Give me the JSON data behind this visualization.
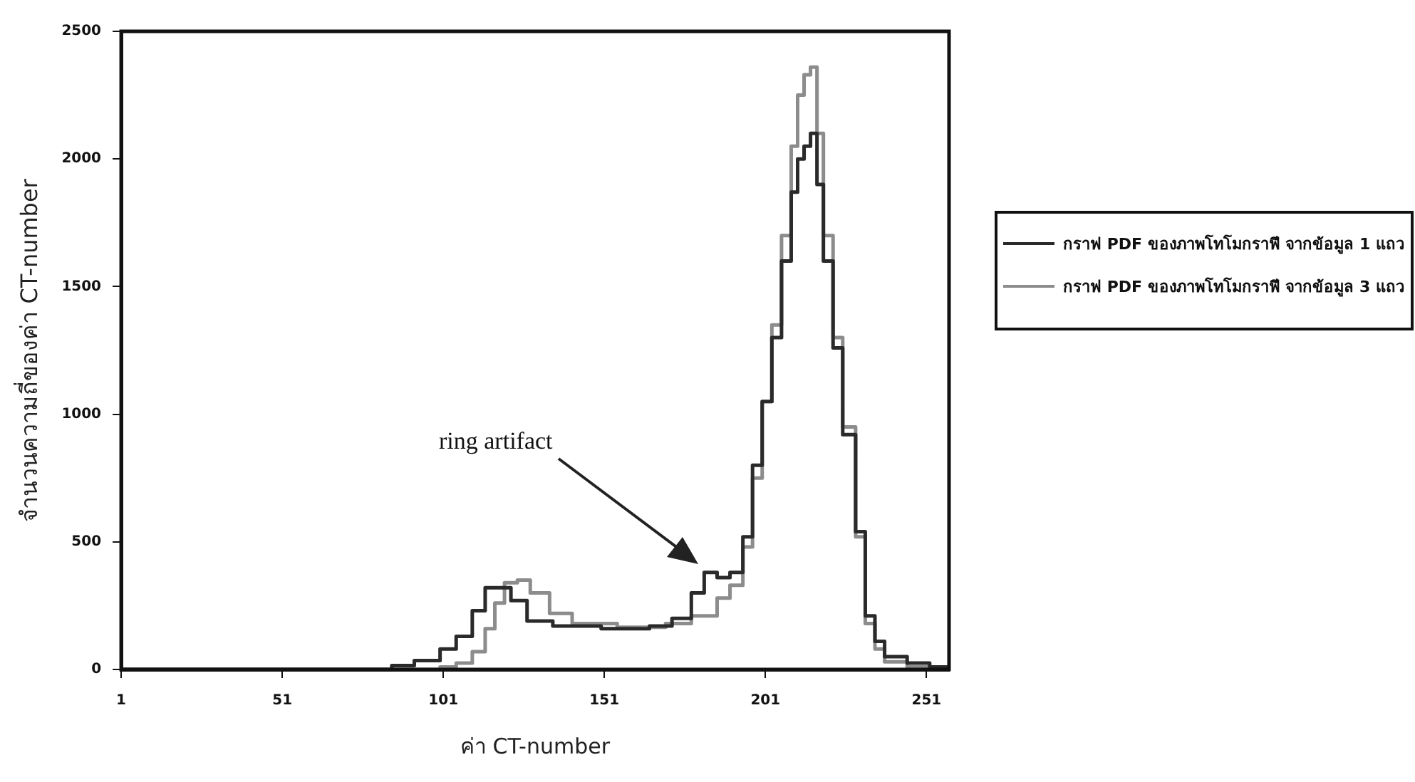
{
  "chart_data": {
    "type": "step",
    "xlabel": "ค่า CT-number",
    "ylabel": "จำนวนความถี่ของค่า CT-number",
    "xlim": [
      1,
      258
    ],
    "ylim": [
      0,
      2500
    ],
    "xticks": [
      1,
      51,
      101,
      151,
      201,
      251
    ],
    "yticks": [
      0,
      500,
      1000,
      1500,
      2000,
      2500
    ],
    "grid": false,
    "legend": "right",
    "marker": "none",
    "line_style": "solid",
    "annotations": [
      "ring artifact"
    ],
    "series": [
      {
        "name": "กราฟ PDF ของภาพโทโมกราฟี จากข้อมูล 1 แถว",
        "color": "#2a2a2a",
        "x": [
          1,
          78,
          85,
          92,
          100,
          105,
          110,
          114,
          118,
          122,
          127,
          135,
          150,
          165,
          172,
          178,
          182,
          186,
          190,
          194,
          197,
          200,
          203,
          206,
          209,
          211,
          213,
          215,
          217,
          219,
          222,
          225,
          229,
          232,
          235,
          238,
          245,
          252,
          258
        ],
        "values": [
          0,
          0,
          15,
          35,
          80,
          130,
          230,
          320,
          320,
          270,
          190,
          170,
          160,
          170,
          200,
          300,
          380,
          360,
          380,
          520,
          800,
          1050,
          1300,
          1600,
          1870,
          2000,
          2050,
          2100,
          1900,
          1600,
          1260,
          920,
          540,
          210,
          110,
          50,
          25,
          10,
          15
        ]
      },
      {
        "name": "กราฟ PDF ของภาพโทโมกราฟี จากข้อมูล 3 แถว",
        "color": "#8c8c8c",
        "x": [
          1,
          95,
          100,
          105,
          110,
          114,
          117,
          120,
          124,
          128,
          134,
          141,
          155,
          170,
          178,
          186,
          190,
          194,
          197,
          200,
          203,
          206,
          209,
          211,
          213,
          215,
          217,
          219,
          222,
          225,
          229,
          232,
          235,
          238,
          245,
          258
        ],
        "values": [
          0,
          0,
          10,
          25,
          70,
          160,
          260,
          340,
          350,
          300,
          220,
          180,
          165,
          180,
          210,
          280,
          330,
          480,
          750,
          1050,
          1350,
          1700,
          2050,
          2250,
          2330,
          2360,
          2100,
          1700,
          1300,
          950,
          520,
          180,
          80,
          30,
          10,
          5
        ]
      }
    ]
  }
}
